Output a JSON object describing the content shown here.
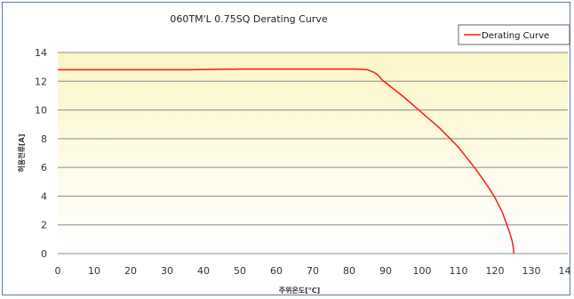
{
  "chart_data": {
    "type": "line",
    "title": "060TM'L 0.75SQ Derating Curve",
    "xlabel": "주위온도[℃]",
    "ylabel": "허용전류[A]",
    "xlim": [
      0,
      140
    ],
    "ylim": [
      0,
      14
    ],
    "x_ticks": [
      0,
      10,
      20,
      30,
      40,
      50,
      60,
      70,
      80,
      90,
      100,
      110,
      120,
      130,
      140
    ],
    "y_ticks": [
      0,
      2,
      4,
      6,
      8,
      10,
      12,
      14
    ],
    "grid": true,
    "legend": "top-right",
    "colors": {
      "line": "#ff1a1a",
      "plot_top": "#fbf6c6",
      "plot_bottom": "#ffffff"
    },
    "series": [
      {
        "name": "Derating Curve",
        "x": [
          0,
          20,
          36,
          50,
          70,
          82,
          85,
          87,
          88,
          89,
          90,
          92,
          95,
          100,
          105,
          110,
          115,
          118,
          120,
          122,
          123,
          124,
          124.7,
          125,
          125.2
        ],
        "y": [
          12.8,
          12.8,
          12.8,
          12.85,
          12.85,
          12.85,
          12.8,
          12.6,
          12.4,
          12.1,
          11.9,
          11.5,
          10.9,
          9.8,
          8.7,
          7.4,
          5.8,
          4.7,
          3.9,
          2.9,
          2.2,
          1.5,
          0.9,
          0.5,
          0
        ]
      }
    ]
  }
}
